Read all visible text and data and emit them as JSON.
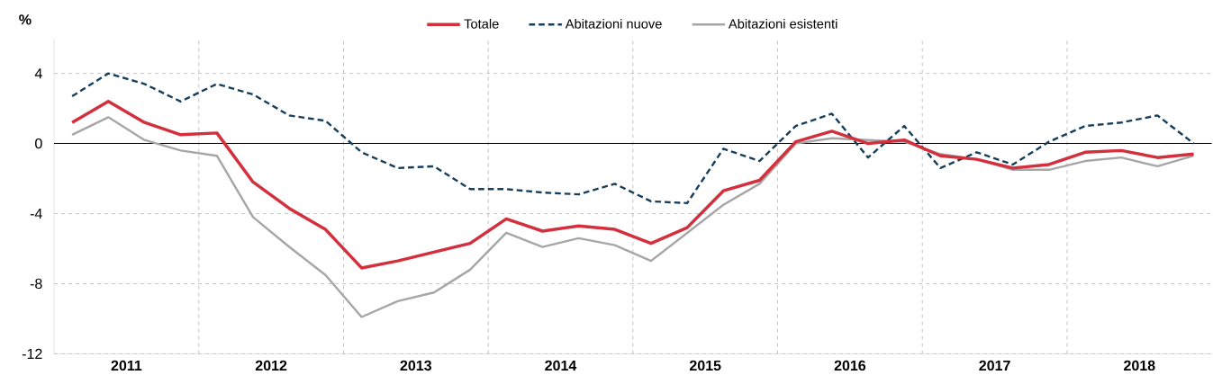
{
  "chart_data": {
    "type": "line",
    "ylabel": "%",
    "x": [
      2011.125,
      2011.375,
      2011.625,
      2011.875,
      2012.125,
      2012.375,
      2012.625,
      2012.875,
      2013.125,
      2013.375,
      2013.625,
      2013.875,
      2014.125,
      2014.375,
      2014.625,
      2014.875,
      2015.125,
      2015.375,
      2015.625,
      2015.875,
      2016.125,
      2016.375,
      2016.625,
      2016.875,
      2017.125,
      2017.375,
      2017.625,
      2017.875,
      2018.125,
      2018.375,
      2018.625,
      2018.875
    ],
    "series": [
      {
        "name": "Totale",
        "color": "#d32f3c",
        "line_style": "solid",
        "values": [
          1.2,
          2.4,
          1.2,
          0.5,
          0.6,
          -2.2,
          -3.7,
          -4.9,
          -7.1,
          -6.7,
          -6.2,
          -5.7,
          -4.3,
          -5.0,
          -4.7,
          -4.9,
          -5.7,
          -4.8,
          -2.7,
          -2.1,
          0.1,
          0.7,
          0.0,
          0.2,
          -0.7,
          -0.9,
          -1.4,
          -1.2,
          -0.5,
          -0.4,
          -0.8,
          -0.6
        ]
      },
      {
        "name": "Abitazioni nuove",
        "color": "#173f5c",
        "line_style": "dashed",
        "values": [
          2.7,
          4.0,
          3.4,
          2.4,
          3.4,
          2.8,
          1.6,
          1.3,
          -0.5,
          -1.4,
          -1.3,
          -2.6,
          -2.6,
          -2.8,
          -2.9,
          -2.3,
          -3.3,
          -3.4,
          -0.3,
          -1.0,
          1.0,
          1.7,
          -0.8,
          1.0,
          -1.4,
          -0.5,
          -1.2,
          0.1,
          1.0,
          1.2,
          1.6,
          0.0
        ]
      },
      {
        "name": "Abitazioni esistenti",
        "color": "#a6a6a6",
        "line_style": "solid",
        "values": [
          0.5,
          1.5,
          0.2,
          -0.4,
          -0.7,
          -4.2,
          -5.9,
          -7.5,
          -9.9,
          -9.0,
          -8.5,
          -7.2,
          -5.1,
          -5.9,
          -5.4,
          -5.8,
          -6.7,
          -5.1,
          -3.5,
          -2.3,
          0.0,
          0.3,
          0.2,
          0.1,
          -0.6,
          -0.9,
          -1.5,
          -1.5,
          -1.0,
          -0.8,
          -1.3,
          -0.7
        ]
      }
    ],
    "xlim": [
      2011,
      2019
    ],
    "xticks": [
      {
        "value": 2011.5,
        "label": "2011"
      },
      {
        "value": 2012,
        "label": null
      },
      {
        "value": 2012.5,
        "label": "2012"
      },
      {
        "value": 2013,
        "label": null
      },
      {
        "value": 2013.5,
        "label": "2013"
      },
      {
        "value": 2014,
        "label": null
      },
      {
        "value": 2014.5,
        "label": "2014"
      },
      {
        "value": 2015,
        "label": null
      },
      {
        "value": 2015.5,
        "label": "2015"
      },
      {
        "value": 2016,
        "label": null
      },
      {
        "value": 2016.5,
        "label": "2016"
      },
      {
        "value": 2017,
        "label": null
      },
      {
        "value": 2017.5,
        "label": "2017"
      },
      {
        "value": 2018,
        "label": null
      },
      {
        "value": 2018.5,
        "label": "2018"
      }
    ],
    "ylim": [
      -12,
      6
    ],
    "yticks": [
      -12,
      -8,
      -4,
      0,
      4
    ],
    "ref_lines": [
      {
        "axis": "y",
        "value": 0,
        "color": "#000000"
      }
    ],
    "grid": true,
    "legend": "top",
    "marker": "none"
  }
}
